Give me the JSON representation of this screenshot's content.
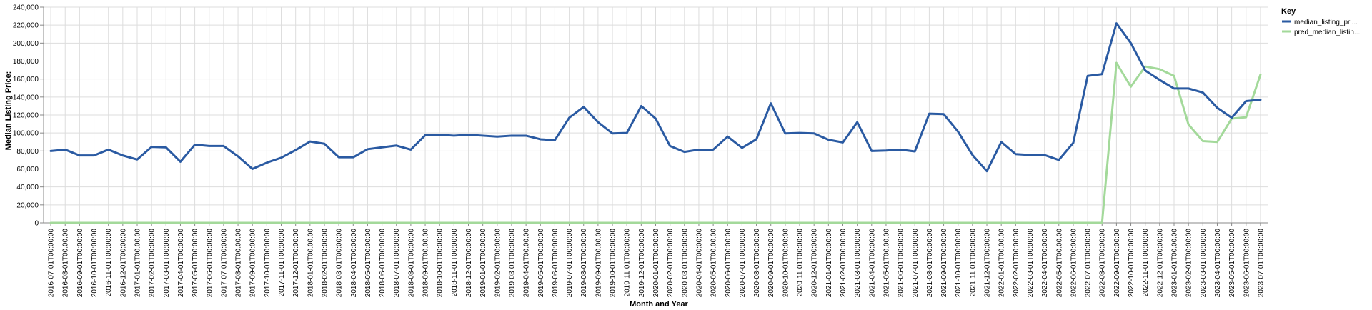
{
  "chart_data": {
    "type": "line",
    "x": [
      "2016-07-01T00:00:00",
      "2016-08-01T00:00:00",
      "2016-09-01T00:00:00",
      "2016-10-01T00:00:00",
      "2016-11-01T00:00:00",
      "2016-12-01T00:00:00",
      "2017-01-01T00:00:00",
      "2017-02-01T00:00:00",
      "2017-03-01T00:00:00",
      "2017-04-01T00:00:00",
      "2017-05-01T00:00:00",
      "2017-06-01T00:00:00",
      "2017-07-01T00:00:00",
      "2017-08-01T00:00:00",
      "2017-09-01T00:00:00",
      "2017-10-01T00:00:00",
      "2017-11-01T00:00:00",
      "2017-12-01T00:00:00",
      "2018-01-01T00:00:00",
      "2018-02-01T00:00:00",
      "2018-03-01T00:00:00",
      "2018-04-01T00:00:00",
      "2018-05-01T00:00:00",
      "2018-06-01T00:00:00",
      "2018-07-01T00:00:00",
      "2018-08-01T00:00:00",
      "2018-09-01T00:00:00",
      "2018-10-01T00:00:00",
      "2018-11-01T00:00:00",
      "2018-12-01T00:00:00",
      "2019-01-01T00:00:00",
      "2019-02-01T00:00:00",
      "2019-03-01T00:00:00",
      "2019-04-01T00:00:00",
      "2019-05-01T00:00:00",
      "2019-06-01T00:00:00",
      "2019-07-01T00:00:00",
      "2019-08-01T00:00:00",
      "2019-09-01T00:00:00",
      "2019-10-01T00:00:00",
      "2019-11-01T00:00:00",
      "2019-12-01T00:00:00",
      "2020-01-01T00:00:00",
      "2020-02-01T00:00:00",
      "2020-03-01T00:00:00",
      "2020-04-01T00:00:00",
      "2020-05-01T00:00:00",
      "2020-06-01T00:00:00",
      "2020-07-01T00:00:00",
      "2020-08-01T00:00:00",
      "2020-09-01T00:00:00",
      "2020-10-01T00:00:00",
      "2020-11-01T00:00:00",
      "2020-12-01T00:00:00",
      "2021-01-01T00:00:00",
      "2021-02-01T00:00:00",
      "2021-03-01T00:00:00",
      "2021-04-01T00:00:00",
      "2021-05-01T00:00:00",
      "2021-06-01T00:00:00",
      "2021-07-01T00:00:00",
      "2021-08-01T00:00:00",
      "2021-09-01T00:00:00",
      "2021-10-01T00:00:00",
      "2021-11-01T00:00:00",
      "2021-12-01T00:00:00",
      "2022-01-01T00:00:00",
      "2022-02-01T00:00:00",
      "2022-03-01T00:00:00",
      "2022-04-01T00:00:00",
      "2022-05-01T00:00:00",
      "2022-06-01T00:00:00",
      "2022-07-01T00:00:00",
      "2022-08-01T00:00:00",
      "2022-09-01T00:00:00",
      "2022-10-01T00:00:00",
      "2022-11-01T00:00:00",
      "2022-12-01T00:00:00",
      "2023-01-01T00:00:00",
      "2023-02-01T00:00:00",
      "2023-03-01T00:00:00",
      "2023-04-01T00:00:00",
      "2023-05-01T00:00:00",
      "2023-06-01T00:00:00",
      "2023-07-01T00:00:00"
    ],
    "series": [
      {
        "name": "median_listing_pri...",
        "color": "#2a5aa2",
        "values": [
          80000,
          81500,
          75000,
          75000,
          81500,
          75000,
          70500,
          84500,
          84000,
          68000,
          87000,
          85500,
          85500,
          74000,
          60000,
          67000,
          72500,
          81000,
          90500,
          88000,
          73000,
          73000,
          82000,
          84000,
          86000,
          81500,
          97500,
          98000,
          97000,
          98000,
          97000,
          96000,
          97000,
          97000,
          93000,
          92000,
          117000,
          129000,
          112000,
          99500,
          100000,
          130000,
          116000,
          85500,
          79000,
          81500,
          81500,
          96000,
          83500,
          93000,
          133000,
          99500,
          100000,
          99500,
          92500,
          89500,
          112000,
          80000,
          80500,
          81500,
          79500,
          121500,
          121000,
          101500,
          75500,
          57500,
          90000,
          76500,
          75500,
          75500,
          70000,
          89000,
          163500,
          165500,
          222000,
          200000,
          169500,
          159000,
          149500,
          149500,
          145000,
          128000,
          117000,
          135500,
          137000
        ]
      },
      {
        "name": "pred_median_listin...",
        "color": "#a3d99a",
        "values": [
          0,
          0,
          0,
          0,
          0,
          0,
          0,
          0,
          0,
          0,
          0,
          0,
          0,
          0,
          0,
          0,
          0,
          0,
          0,
          0,
          0,
          0,
          0,
          0,
          0,
          0,
          0,
          0,
          0,
          0,
          0,
          0,
          0,
          0,
          0,
          0,
          0,
          0,
          0,
          0,
          0,
          0,
          0,
          0,
          0,
          0,
          0,
          0,
          0,
          0,
          0,
          0,
          0,
          0,
          0,
          0,
          0,
          0,
          0,
          0,
          0,
          0,
          0,
          0,
          0,
          0,
          0,
          0,
          0,
          0,
          0,
          0,
          0,
          0,
          178000,
          151500,
          174000,
          171000,
          163500,
          109500,
          91000,
          90000,
          116000,
          117500,
          165000
        ]
      }
    ],
    "ylim": [
      0,
      240000
    ],
    "yticks": [
      "0",
      "20,000",
      "40,000",
      "60,000",
      "80,000",
      "100,000",
      "120,000",
      "140,000",
      "160,000",
      "180,000",
      "200,000",
      "220,000",
      "240,000"
    ],
    "xlabel": "Month and Year",
    "ylabel": "Median Listing Price:",
    "legend_title": "Key",
    "legend_position": "top-right",
    "grid": true
  }
}
